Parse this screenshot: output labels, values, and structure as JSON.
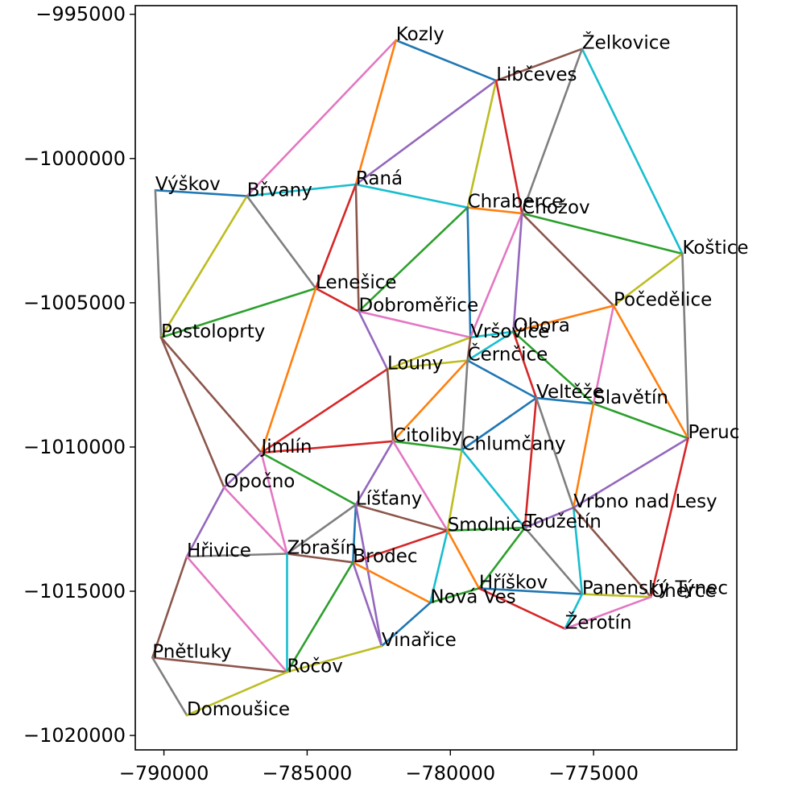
{
  "chart_data": {
    "type": "network",
    "title": "",
    "xlabel": "",
    "ylabel": "",
    "xlim": [
      -791000,
      -770000
    ],
    "ylim": [
      -1020500,
      -994700
    ],
    "x_ticks": [
      -790000,
      -785000,
      -780000,
      -775000
    ],
    "y_ticks": [
      -995000,
      -1000000,
      -1005000,
      -1010000,
      -1015000,
      -1020000
    ],
    "x_tick_labels": [
      "−790000",
      "−785000",
      "−780000",
      "−775000"
    ],
    "y_tick_labels": [
      "−995000",
      "−1000000",
      "−1005000",
      "−1010000",
      "−1015000",
      "−1020000"
    ],
    "palette": [
      "#1f77b4",
      "#ff7f0e",
      "#2ca02c",
      "#d62728",
      "#9467bd",
      "#8c564b",
      "#e377c2",
      "#7f7f7f",
      "#bcbd22",
      "#17becf"
    ],
    "nodes": [
      {
        "name": "Kozly",
        "x": -781900,
        "y": -995900
      },
      {
        "name": "Želkovice",
        "x": -775400,
        "y": -996200
      },
      {
        "name": "Libčeves",
        "x": -778400,
        "y": -997300
      },
      {
        "name": "Výškov",
        "x": -790300,
        "y": -1001100
      },
      {
        "name": "Břvany",
        "x": -787100,
        "y": -1001300
      },
      {
        "name": "Raná",
        "x": -783300,
        "y": -1000900
      },
      {
        "name": "Chraberce",
        "x": -779400,
        "y": -1001700
      },
      {
        "name": "Chožov",
        "x": -777500,
        "y": -1001900
      },
      {
        "name": "Koštice",
        "x": -771900,
        "y": -1003300
      },
      {
        "name": "Lenešice",
        "x": -784700,
        "y": -1004500
      },
      {
        "name": "Dobroměřice",
        "x": -783200,
        "y": -1005300
      },
      {
        "name": "Počedělice",
        "x": -774300,
        "y": -1005100
      },
      {
        "name": "Postoloprty",
        "x": -790100,
        "y": -1006200
      },
      {
        "name": "Vršovice",
        "x": -779300,
        "y": -1006200
      },
      {
        "name": "Obora",
        "x": -777800,
        "y": -1006000
      },
      {
        "name": "Černčice",
        "x": -779400,
        "y": -1007000
      },
      {
        "name": "Louny",
        "x": -782200,
        "y": -1007300
      },
      {
        "name": "Veltěže",
        "x": -777000,
        "y": -1008300
      },
      {
        "name": "Slavětín",
        "x": -775000,
        "y": -1008500
      },
      {
        "name": "Peruc",
        "x": -771700,
        "y": -1009700
      },
      {
        "name": "Jimlín",
        "x": -786600,
        "y": -1010200
      },
      {
        "name": "Citoliby",
        "x": -782000,
        "y": -1009800
      },
      {
        "name": "Chlumčany",
        "x": -779600,
        "y": -1010100
      },
      {
        "name": "Opočno",
        "x": -787900,
        "y": -1011400
      },
      {
        "name": "Líšťany",
        "x": -783300,
        "y": -1012000
      },
      {
        "name": "Vrbno nad Lesy",
        "x": -775700,
        "y": -1012100
      },
      {
        "name": "Toužetín",
        "x": -777400,
        "y": -1012800
      },
      {
        "name": "Smolnice",
        "x": -780100,
        "y": -1012900
      },
      {
        "name": "Hřivice",
        "x": -789200,
        "y": -1013800
      },
      {
        "name": "Zbrašín",
        "x": -785700,
        "y": -1013700
      },
      {
        "name": "Brodec",
        "x": -783400,
        "y": -1014000
      },
      {
        "name": "Hříškov",
        "x": -779000,
        "y": -1014900
      },
      {
        "name": "Nová Ves",
        "x": -780700,
        "y": -1015400
      },
      {
        "name": "Panenský Týnec",
        "x": -775400,
        "y": -1015100
      },
      {
        "name": "Úherce",
        "x": -773000,
        "y": -1015200
      },
      {
        "name": "Žerotín",
        "x": -776000,
        "y": -1016300
      },
      {
        "name": "Vinařice",
        "x": -782400,
        "y": -1016900
      },
      {
        "name": "Pnětluky",
        "x": -790400,
        "y": -1017300
      },
      {
        "name": "Ročov",
        "x": -785700,
        "y": -1017800
      },
      {
        "name": "Domoušice",
        "x": -789200,
        "y": -1019300
      }
    ],
    "edges": [
      {
        "from": "Kozly",
        "to": "Libčeves",
        "color": "#1f77b4"
      },
      {
        "from": "Kozly",
        "to": "Břvany",
        "color": "#e377c2"
      },
      {
        "from": "Kozly",
        "to": "Raná",
        "color": "#ff7f0e"
      },
      {
        "from": "Libčeves",
        "to": "Želkovice",
        "color": "#8c564b"
      },
      {
        "from": "Želkovice",
        "to": "Koštice",
        "color": "#17becf"
      },
      {
        "from": "Želkovice",
        "to": "Chožov",
        "color": "#7f7f7f"
      },
      {
        "from": "Libčeves",
        "to": "Raná",
        "color": "#9467bd"
      },
      {
        "from": "Libčeves",
        "to": "Chraberce",
        "color": "#bcbd22"
      },
      {
        "from": "Libčeves",
        "to": "Chožov",
        "color": "#d62728"
      },
      {
        "from": "Výškov",
        "to": "Břvany",
        "color": "#1f77b4"
      },
      {
        "from": "Výškov",
        "to": "Postoloprty",
        "color": "#7f7f7f"
      },
      {
        "from": "Břvany",
        "to": "Raná",
        "color": "#17becf"
      },
      {
        "from": "Břvany",
        "to": "Postoloprty",
        "color": "#bcbd22"
      },
      {
        "from": "Břvany",
        "to": "Lenešice",
        "color": "#7f7f7f"
      },
      {
        "from": "Raná",
        "to": "Chraberce",
        "color": "#17becf"
      },
      {
        "from": "Raná",
        "to": "Lenešice",
        "color": "#d62728"
      },
      {
        "from": "Raná",
        "to": "Dobroměřice",
        "color": "#8c564b"
      },
      {
        "from": "Chraberce",
        "to": "Chožov",
        "color": "#ff7f0e"
      },
      {
        "from": "Chraberce",
        "to": "Dobroměřice",
        "color": "#2ca02c"
      },
      {
        "from": "Chraberce",
        "to": "Vršovice",
        "color": "#1f77b4"
      },
      {
        "from": "Chožov",
        "to": "Koštice",
        "color": "#2ca02c"
      },
      {
        "from": "Chožov",
        "to": "Počedělice",
        "color": "#8c564b"
      },
      {
        "from": "Chožov",
        "to": "Vršovice",
        "color": "#e377c2"
      },
      {
        "from": "Chožov",
        "to": "Obora",
        "color": "#9467bd"
      },
      {
        "from": "Koštice",
        "to": "Počedělice",
        "color": "#bcbd22"
      },
      {
        "from": "Koštice",
        "to": "Peruc",
        "color": "#7f7f7f"
      },
      {
        "from": "Lenešice",
        "to": "Postoloprty",
        "color": "#2ca02c"
      },
      {
        "from": "Lenešice",
        "to": "Dobroměřice",
        "color": "#d62728"
      },
      {
        "from": "Lenešice",
        "to": "Jimlín",
        "color": "#ff7f0e"
      },
      {
        "from": "Dobroměřice",
        "to": "Vršovice",
        "color": "#e377c2"
      },
      {
        "from": "Dobroměřice",
        "to": "Louny",
        "color": "#9467bd"
      },
      {
        "from": "Počedělice",
        "to": "Obora",
        "color": "#ff7f0e"
      },
      {
        "from": "Počedělice",
        "to": "Slavětín",
        "color": "#e377c2"
      },
      {
        "from": "Počedělice",
        "to": "Peruc",
        "color": "#ff7f0e"
      },
      {
        "from": "Postoloprty",
        "to": "Jimlín",
        "color": "#8c564b"
      },
      {
        "from": "Postoloprty",
        "to": "Opočno",
        "color": "#8c564b"
      },
      {
        "from": "Vršovice",
        "to": "Obora",
        "color": "#17becf"
      },
      {
        "from": "Vršovice",
        "to": "Louny",
        "color": "#bcbd22"
      },
      {
        "from": "Vršovice",
        "to": "Černčice",
        "color": "#8c564b"
      },
      {
        "from": "Obora",
        "to": "Černčice",
        "color": "#17becf"
      },
      {
        "from": "Obora",
        "to": "Veltěže",
        "color": "#d62728"
      },
      {
        "from": "Obora",
        "to": "Slavětín",
        "color": "#2ca02c"
      },
      {
        "from": "Černčice",
        "to": "Louny",
        "color": "#bcbd22"
      },
      {
        "from": "Černčice",
        "to": "Veltěže",
        "color": "#1f77b4"
      },
      {
        "from": "Černčice",
        "to": "Citoliby",
        "color": "#ff7f0e"
      },
      {
        "from": "Černčice",
        "to": "Chlumčany",
        "color": "#7f7f7f"
      },
      {
        "from": "Louny",
        "to": "Jimlín",
        "color": "#d62728"
      },
      {
        "from": "Louny",
        "to": "Citoliby",
        "color": "#8c564b"
      },
      {
        "from": "Veltěže",
        "to": "Slavětín",
        "color": "#1f77b4"
      },
      {
        "from": "Veltěže",
        "to": "Chlumčany",
        "color": "#1f77b4"
      },
      {
        "from": "Veltěže",
        "to": "Toužetín",
        "color": "#d62728"
      },
      {
        "from": "Veltěže",
        "to": "Vrbno nad Lesy",
        "color": "#7f7f7f"
      },
      {
        "from": "Slavětín",
        "to": "Peruc",
        "color": "#2ca02c"
      },
      {
        "from": "Slavětín",
        "to": "Vrbno nad Lesy",
        "color": "#ff7f0e"
      },
      {
        "from": "Peruc",
        "to": "Vrbno nad Lesy",
        "color": "#9467bd"
      },
      {
        "from": "Peruc",
        "to": "Úherce",
        "color": "#d62728"
      },
      {
        "from": "Jimlín",
        "to": "Citoliby",
        "color": "#d62728"
      },
      {
        "from": "Jimlín",
        "to": "Opočno",
        "color": "#9467bd"
      },
      {
        "from": "Jimlín",
        "to": "Líšťany",
        "color": "#2ca02c"
      },
      {
        "from": "Jimlín",
        "to": "Zbrašín",
        "color": "#e377c2"
      },
      {
        "from": "Citoliby",
        "to": "Chlumčany",
        "color": "#2ca02c"
      },
      {
        "from": "Citoliby",
        "to": "Líšťany",
        "color": "#9467bd"
      },
      {
        "from": "Citoliby",
        "to": "Smolnice",
        "color": "#e377c2"
      },
      {
        "from": "Chlumčany",
        "to": "Smolnice",
        "color": "#bcbd22"
      },
      {
        "from": "Chlumčany",
        "to": "Toužetín",
        "color": "#17becf"
      },
      {
        "from": "Opočno",
        "to": "Hřivice",
        "color": "#9467bd"
      },
      {
        "from": "Opočno",
        "to": "Zbrašín",
        "color": "#e377c2"
      },
      {
        "from": "Líšťany",
        "to": "Zbrašín",
        "color": "#7f7f7f"
      },
      {
        "from": "Líšťany",
        "to": "Brodec",
        "color": "#1f77b4"
      },
      {
        "from": "Líšťany",
        "to": "Smolnice",
        "color": "#8c564b"
      },
      {
        "from": "Líšťany",
        "to": "Vinařice",
        "color": "#9467bd"
      },
      {
        "from": "Vrbno nad Lesy",
        "to": "Toužetín",
        "color": "#9467bd"
      },
      {
        "from": "Vrbno nad Lesy",
        "to": "Panenský Týnec",
        "color": "#17becf"
      },
      {
        "from": "Vrbno nad Lesy",
        "to": "Úherce",
        "color": "#8c564b"
      },
      {
        "from": "Toužetín",
        "to": "Smolnice",
        "color": "#2ca02c"
      },
      {
        "from": "Toužetín",
        "to": "Hříškov",
        "color": "#2ca02c"
      },
      {
        "from": "Toužetín",
        "to": "Panenský Týnec",
        "color": "#7f7f7f"
      },
      {
        "from": "Smolnice",
        "to": "Brodec",
        "color": "#d62728"
      },
      {
        "from": "Smolnice",
        "to": "Nová Ves",
        "color": "#17becf"
      },
      {
        "from": "Smolnice",
        "to": "Hříškov",
        "color": "#ff7f0e"
      },
      {
        "from": "Hřivice",
        "to": "Zbrašín",
        "color": "#7f7f7f"
      },
      {
        "from": "Hřivice",
        "to": "Pnětluky",
        "color": "#8c564b"
      },
      {
        "from": "Hřivice",
        "to": "Ročov",
        "color": "#e377c2"
      },
      {
        "from": "Zbrašín",
        "to": "Brodec",
        "color": "#8c564b"
      },
      {
        "from": "Zbrašín",
        "to": "Ročov",
        "color": "#17becf"
      },
      {
        "from": "Brodec",
        "to": "Nová Ves",
        "color": "#ff7f0e"
      },
      {
        "from": "Brodec",
        "to": "Vinařice",
        "color": "#9467bd"
      },
      {
        "from": "Brodec",
        "to": "Ročov",
        "color": "#2ca02c"
      },
      {
        "from": "Nová Ves",
        "to": "Hříškov",
        "color": "#2ca02c"
      },
      {
        "from": "Nová Ves",
        "to": "Vinařice",
        "color": "#1f77b4"
      },
      {
        "from": "Hříškov",
        "to": "Panenský Týnec",
        "color": "#1f77b4"
      },
      {
        "from": "Hříškov",
        "to": "Žerotín",
        "color": "#d62728"
      },
      {
        "from": "Panenský Týnec",
        "to": "Úherce",
        "color": "#bcbd22"
      },
      {
        "from": "Panenský Týnec",
        "to": "Žerotín",
        "color": "#17becf"
      },
      {
        "from": "Úherce",
        "to": "Žerotín",
        "color": "#e377c2"
      },
      {
        "from": "Vinařice",
        "to": "Ročov",
        "color": "#bcbd22"
      },
      {
        "from": "Pnětluky",
        "to": "Ročov",
        "color": "#8c564b"
      },
      {
        "from": "Pnětluky",
        "to": "Domoušice",
        "color": "#7f7f7f"
      },
      {
        "from": "Ročov",
        "to": "Domoušice",
        "color": "#bcbd22"
      }
    ]
  }
}
